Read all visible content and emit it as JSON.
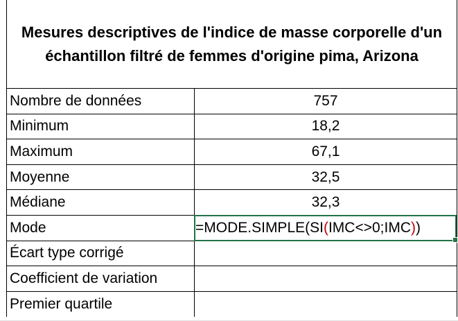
{
  "table": {
    "title": "Mesures descriptives de l'indice de masse corporelle d'un échantillon filtré de femmes d'origine pima, Arizona",
    "rows": [
      {
        "label": "Nombre de données",
        "value": "757"
      },
      {
        "label": "Minimum",
        "value": "18,2"
      },
      {
        "label": "Maximum",
        "value": "67,1"
      },
      {
        "label": "Moyenne",
        "value": "32,5"
      },
      {
        "label": "Médiane",
        "value": "32,3"
      },
      {
        "label": "Mode",
        "value": ""
      },
      {
        "label": "Écart type corrigé",
        "value": ""
      },
      {
        "label": "Coefficient de variation",
        "value": ""
      },
      {
        "label": "Premier quartile",
        "value": ""
      }
    ],
    "formula": {
      "part1": "=MODE.SIMPLE(SI",
      "open_paren": "(",
      "part2": "IMC<>0;IMC",
      "close_paren": ")",
      "part3": ")"
    }
  },
  "colors": {
    "active_cell_border": "#217346",
    "paren_highlight": "#c00000"
  }
}
